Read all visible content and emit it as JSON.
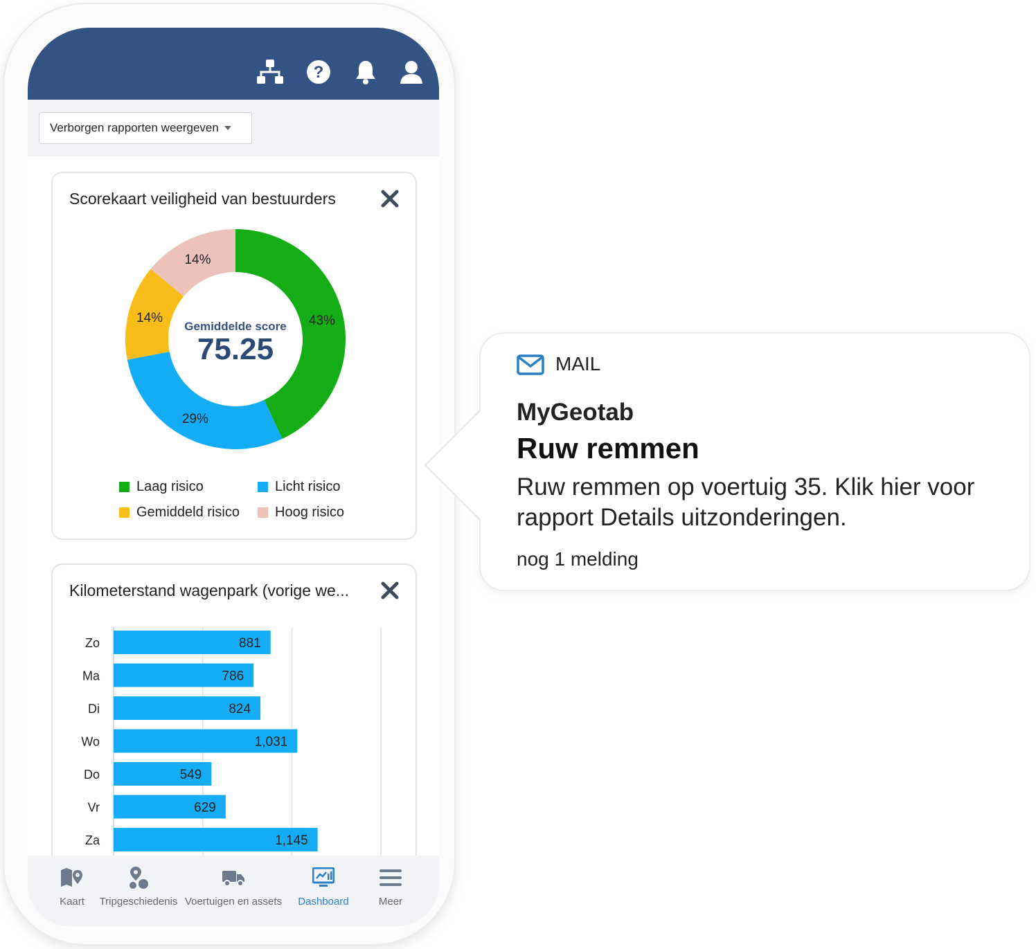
{
  "header": {
    "icons": [
      "org-chart-icon",
      "help-icon",
      "bell-icon",
      "user-icon"
    ]
  },
  "toolbar": {
    "dropdown_label": "Verborgen rapporten weergeven"
  },
  "safety_card": {
    "title": "Scorekaart veiligheid van bestuurders",
    "center_label": "Gemiddelde score",
    "center_value": "75.25",
    "legend": [
      {
        "label": "Laag risico",
        "color": "#15ad15"
      },
      {
        "label": "Licht risico",
        "color": "#14acf5"
      },
      {
        "label": "Gemiddeld risico",
        "color": "#f8bd18"
      },
      {
        "label": "Hoog risico",
        "color": "#ecc2bb"
      }
    ]
  },
  "mileage_card": {
    "title": "Kilometerstand wagenpark (vorige we..."
  },
  "chart_data": [
    {
      "type": "pie",
      "title": "Scorekaart veiligheid van bestuurders",
      "categories": [
        "Laag risico",
        "Licht risico",
        "Gemiddeld risico",
        "Hoog risico"
      ],
      "values": [
        43,
        29,
        14,
        14
      ],
      "labels": [
        "43%",
        "29%",
        "14%",
        "14%"
      ],
      "colors": [
        "#15ad15",
        "#14acf5",
        "#f8bd18",
        "#ecc2bb"
      ],
      "donut": true,
      "legend": "bottom"
    },
    {
      "type": "bar",
      "orientation": "horizontal",
      "title": "Kilometerstand wagenpark (vorige we...",
      "categories": [
        "Zo",
        "Ma",
        "Di",
        "Wo",
        "Do",
        "Vr",
        "Za"
      ],
      "values": [
        881,
        786,
        824,
        1031,
        549,
        629,
        1145
      ],
      "value_labels": [
        "881",
        "786",
        "824",
        "1,031",
        "549",
        "629",
        "1,145"
      ],
      "color": "#14acf5",
      "xlim": [
        0,
        1500
      ],
      "grid": true
    }
  ],
  "bottom_nav": [
    {
      "label": "Kaart",
      "icon": "map-pin-icon",
      "active": false
    },
    {
      "label": "Tripgeschiedenis",
      "icon": "trip-history-icon",
      "active": false
    },
    {
      "label": "Voertuigen en assets",
      "icon": "truck-icon",
      "active": false
    },
    {
      "label": "Dashboard",
      "icon": "dashboard-icon",
      "active": true
    },
    {
      "label": "Meer",
      "icon": "menu-icon",
      "active": false
    }
  ],
  "notification": {
    "app": "MAIL",
    "source": "MyGeotab",
    "title": "Ruw remmen",
    "body": "Ruw remmen op voertuig 35. Klik hier voor rapport Details uitzonderingen.",
    "more": "nog 1 melding",
    "icon": "mail-icon",
    "icon_color": "#2a7fc9"
  }
}
